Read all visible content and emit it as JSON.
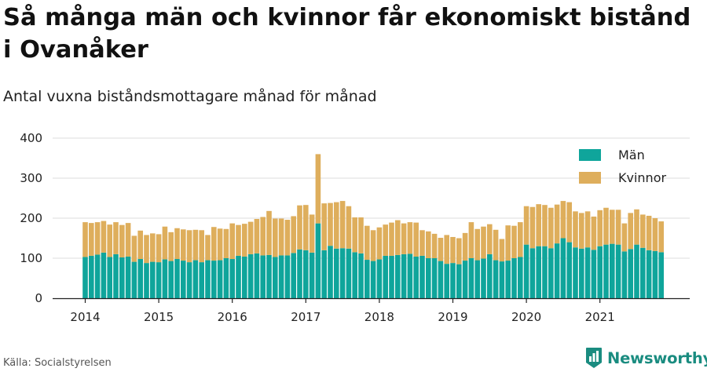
{
  "header": {
    "title": "Så många män och kvinnor får ekonomiskt bistånd i Ovanåker",
    "subtitle": "Antal vuxna biståndsmottagare månad för månad"
  },
  "footer": {
    "source": "Källa: Socialstyrelsen",
    "brand": "Newsworthy"
  },
  "colors": {
    "men": "#0fa59b",
    "women": "#deae5c",
    "grid": "#dddddd",
    "axis": "#222222",
    "text": "#222222",
    "brand": "#1a8c80"
  },
  "chart_data": {
    "type": "bar",
    "stacked": true,
    "title": "",
    "xlabel": "",
    "ylabel": "",
    "ylim": [
      0,
      400
    ],
    "yticks": [
      0,
      100,
      200,
      300,
      400
    ],
    "xticks": [
      "2014",
      "2015",
      "2016",
      "2017",
      "2018",
      "2019",
      "2020",
      "2021"
    ],
    "grid": true,
    "legend_position": "top-right",
    "x_start": "2014-01",
    "x_end": "2021-11",
    "series": [
      {
        "name": "Män",
        "values": [
          103,
          106,
          109,
          114,
          103,
          110,
          102,
          104,
          91,
          98,
          88,
          91,
          90,
          97,
          93,
          98,
          94,
          90,
          95,
          90,
          95,
          94,
          95,
          100,
          98,
          106,
          104,
          110,
          112,
          107,
          108,
          103,
          107,
          107,
          113,
          122,
          120,
          114,
          187,
          120,
          131,
          124,
          125,
          124,
          115,
          112,
          96,
          93,
          97,
          106,
          106,
          108,
          110,
          111,
          104,
          106,
          100,
          100,
          93,
          86,
          88,
          85,
          94,
          100,
          95,
          99,
          110,
          95,
          92,
          94,
          100,
          103,
          134,
          125,
          130,
          130,
          125,
          137,
          150,
          140,
          127,
          124,
          127,
          121,
          130,
          134,
          136,
          134,
          117,
          123,
          134,
          126,
          120,
          118,
          115
        ]
      },
      {
        "name": "Kvinnor",
        "values": [
          87,
          82,
          81,
          79,
          81,
          80,
          81,
          84,
          65,
          71,
          70,
          71,
          70,
          82,
          72,
          77,
          78,
          80,
          76,
          80,
          63,
          84,
          79,
          73,
          89,
          77,
          82,
          81,
          86,
          96,
          110,
          96,
          92,
          89,
          92,
          110,
          113,
          95,
          173,
          117,
          107,
          116,
          118,
          106,
          87,
          90,
          85,
          77,
          80,
          78,
          83,
          87,
          77,
          79,
          85,
          64,
          67,
          61,
          58,
          72,
          65,
          65,
          69,
          90,
          78,
          80,
          75,
          76,
          56,
          88,
          81,
          87,
          96,
          103,
          105,
          103,
          101,
          97,
          93,
          100,
          90,
          89,
          90,
          83,
          90,
          92,
          85,
          87,
          70,
          90,
          88,
          83,
          86,
          82,
          77
        ]
      }
    ]
  }
}
